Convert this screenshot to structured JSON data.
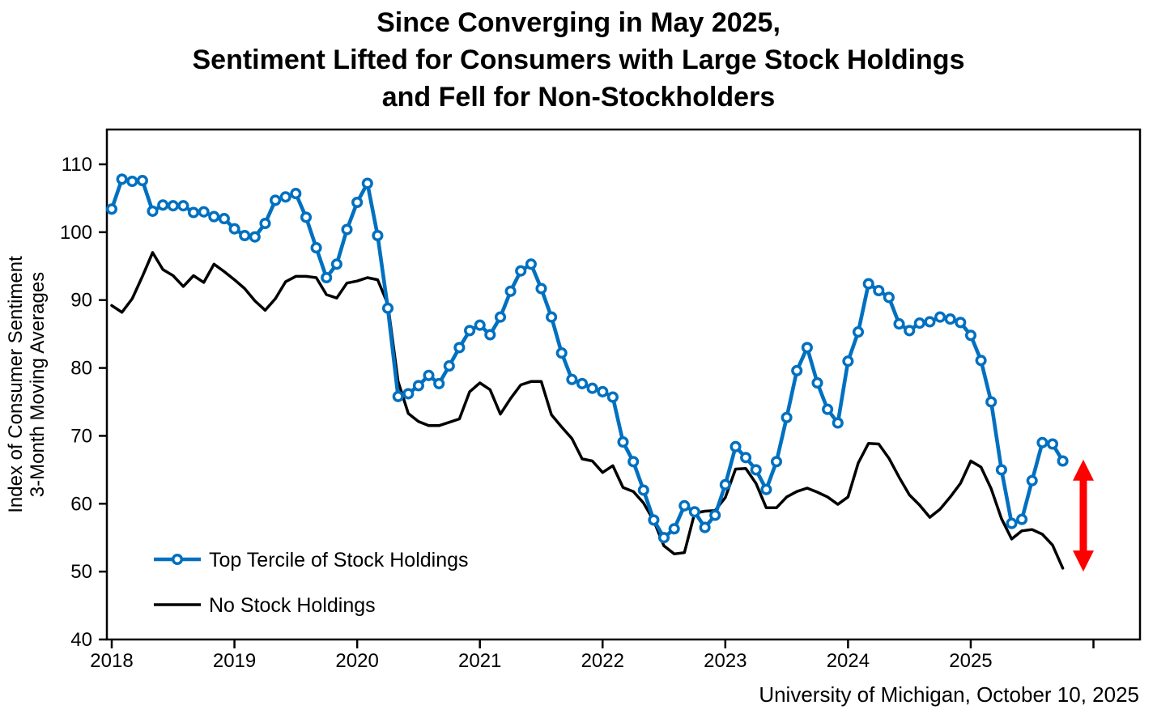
{
  "chart": {
    "title_line1": "Since Converging in May 2025,",
    "title_line2": "Sentiment Lifted for Consumers with Large Stock Holdings",
    "title_line3": "and Fell for Non-Stockholders",
    "ylabel_line1": "Index of Consumer Sentiment",
    "ylabel_line2": "3-Month Moving Averages",
    "source": "University of Michigan, October 10, 2025"
  },
  "chart_data": {
    "type": "line",
    "title": "Since Converging in May 2025, Sentiment Lifted for Consumers with Large Stock Holdings and Fell for Non-Stockholders",
    "ylabel": "Index of Consumer Sentiment, 3-Month Moving Averages",
    "source": "University of Michigan, October 10, 2025",
    "grid": false,
    "legend_position": "inside-bottom-left",
    "ylim": [
      40,
      110
    ],
    "yticks": [
      110,
      100,
      90,
      80,
      70,
      60,
      50,
      40
    ],
    "xtick_labels": [
      "2018",
      "2019",
      "2020",
      "2021",
      "2022",
      "2023",
      "2024",
      "2025"
    ],
    "x_unit": "month",
    "categories": [
      "2018-01",
      "2018-02",
      "2018-03",
      "2018-04",
      "2018-05",
      "2018-06",
      "2018-07",
      "2018-08",
      "2018-09",
      "2018-10",
      "2018-11",
      "2018-12",
      "2019-01",
      "2019-02",
      "2019-03",
      "2019-04",
      "2019-05",
      "2019-06",
      "2019-07",
      "2019-08",
      "2019-09",
      "2019-10",
      "2019-11",
      "2019-12",
      "2020-01",
      "2020-02",
      "2020-03",
      "2020-04",
      "2020-05",
      "2020-06",
      "2020-07",
      "2020-08",
      "2020-09",
      "2020-10",
      "2020-11",
      "2020-12",
      "2021-01",
      "2021-02",
      "2021-03",
      "2021-04",
      "2021-05",
      "2021-06",
      "2021-07",
      "2021-08",
      "2021-09",
      "2021-10",
      "2021-11",
      "2021-12",
      "2022-01",
      "2022-02",
      "2022-03",
      "2022-04",
      "2022-05",
      "2022-06",
      "2022-07",
      "2022-08",
      "2022-09",
      "2022-10",
      "2022-11",
      "2022-12",
      "2023-01",
      "2023-02",
      "2023-03",
      "2023-04",
      "2023-05",
      "2023-06",
      "2023-07",
      "2023-08",
      "2023-09",
      "2023-10",
      "2023-11",
      "2023-12",
      "2024-01",
      "2024-02",
      "2024-03",
      "2024-04",
      "2024-05",
      "2024-06",
      "2024-07",
      "2024-08",
      "2024-09",
      "2024-10",
      "2024-11",
      "2024-12",
      "2025-01",
      "2025-02",
      "2025-03",
      "2025-04",
      "2025-05",
      "2025-06",
      "2025-07",
      "2025-08",
      "2025-09",
      "2025-10"
    ],
    "series": [
      {
        "name": "Top Tercile of Stock Holdings",
        "color": "#0070C0",
        "marker": "circle",
        "values": [
          103.4,
          107.8,
          107.5,
          107.6,
          103.1,
          104.0,
          103.9,
          103.9,
          102.9,
          103.0,
          102.3,
          102.0,
          100.5,
          99.5,
          99.3,
          101.3,
          104.7,
          105.2,
          105.7,
          102.2,
          97.7,
          93.3,
          95.3,
          100.4,
          104.4,
          107.2,
          99.5,
          88.8,
          75.8,
          76.2,
          77.4,
          78.9,
          77.7,
          80.3,
          83.0,
          85.5,
          86.3,
          84.9,
          87.5,
          91.3,
          94.3,
          95.3,
          91.7,
          87.5,
          82.2,
          78.3,
          77.7,
          77.0,
          76.5,
          75.7,
          69.1,
          66.2,
          62.0,
          57.6,
          55.0,
          56.3,
          59.7,
          58.8,
          56.5,
          58.3,
          62.8,
          68.4,
          66.8,
          65.0,
          62.1,
          66.2,
          72.7,
          79.6,
          83.0,
          77.8,
          73.9,
          71.9,
          81.0,
          85.3,
          92.4,
          91.4,
          90.4,
          86.5,
          85.5,
          86.6,
          86.8,
          87.5,
          87.2,
          86.7,
          84.8,
          81.1,
          75.0,
          65.0,
          57.1,
          57.7,
          63.4,
          69.0,
          68.8,
          66.3
        ]
      },
      {
        "name": "No Stock Holdings",
        "color": "#000000",
        "marker": "none",
        "values": [
          89.2,
          88.2,
          90.2,
          93.5,
          97.0,
          94.5,
          93.6,
          92.0,
          93.6,
          92.6,
          95.3,
          94.2,
          93.0,
          91.7,
          89.9,
          88.5,
          90.2,
          92.7,
          93.5,
          93.5,
          93.3,
          90.8,
          90.3,
          92.5,
          92.8,
          93.3,
          93.0,
          89.4,
          78.0,
          73.3,
          72.1,
          71.5,
          71.5,
          72.0,
          72.5,
          76.5,
          77.8,
          76.8,
          73.2,
          75.5,
          77.5,
          78.0,
          78.0,
          73.1,
          71.3,
          69.6,
          66.6,
          66.3,
          64.6,
          65.6,
          62.4,
          61.8,
          60.1,
          57.5,
          53.8,
          52.6,
          52.8,
          58.6,
          58.9,
          59.0,
          60.9,
          65.1,
          65.2,
          63.0,
          59.4,
          59.4,
          61.0,
          61.8,
          62.3,
          61.7,
          61.0,
          59.9,
          61.0,
          66.0,
          68.9,
          68.8,
          66.7,
          63.9,
          61.3,
          59.8,
          58.0,
          59.2,
          61.0,
          63.0,
          66.3,
          65.4,
          62.2,
          57.8,
          54.8,
          56.0,
          56.2,
          55.5,
          53.9,
          50.5
        ]
      }
    ],
    "annotation": {
      "shape": "vertical-double-arrow",
      "color": "#FF0000",
      "y_top": 66.5,
      "y_bottom": 50.0
    }
  }
}
